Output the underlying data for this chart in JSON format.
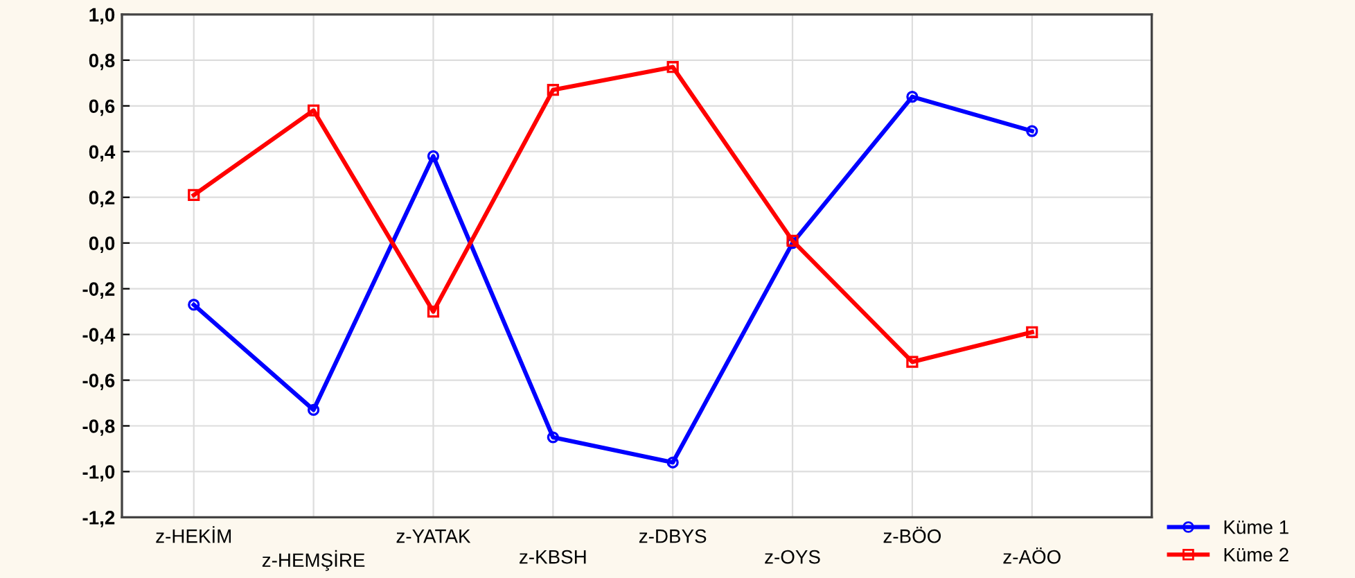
{
  "chart_data": {
    "type": "line",
    "categories": [
      "z-HEKİM",
      "z-HEMŞİRE",
      "z-YATAK",
      "z-KBSH",
      "z-DBYS",
      "z-OYS",
      "z-BÖO",
      "z-AÖO"
    ],
    "series": [
      {
        "name": "Küme 1",
        "color": "#0000ff",
        "marker": "circle",
        "values": [
          -0.27,
          -0.73,
          0.38,
          -0.85,
          -0.96,
          0.0,
          0.64,
          0.49
        ]
      },
      {
        "name": "Küme 2",
        "color": "#ff0000",
        "marker": "square",
        "values": [
          0.21,
          0.58,
          -0.3,
          0.67,
          0.77,
          0.01,
          -0.52,
          -0.39
        ]
      }
    ],
    "ylim": [
      -1.2,
      1.0
    ],
    "yticks": [
      {
        "value": 1.0,
        "label": "1,0"
      },
      {
        "value": 0.8,
        "label": "0,8"
      },
      {
        "value": 0.6,
        "label": "0,6"
      },
      {
        "value": 0.4,
        "label": "0,4"
      },
      {
        "value": 0.2,
        "label": "0,2"
      },
      {
        "value": 0.0,
        "label": "0,0"
      },
      {
        "value": -0.2,
        "label": "-0,2"
      },
      {
        "value": -0.4,
        "label": "-0,4"
      },
      {
        "value": -0.6,
        "label": "-0,6"
      },
      {
        "value": -0.8,
        "label": "-0,8"
      },
      {
        "value": -1.0,
        "label": "-1,0"
      },
      {
        "value": -1.2,
        "label": "-1,2"
      }
    ],
    "grid": true,
    "legend": "bottom right",
    "line_style": "solid"
  }
}
